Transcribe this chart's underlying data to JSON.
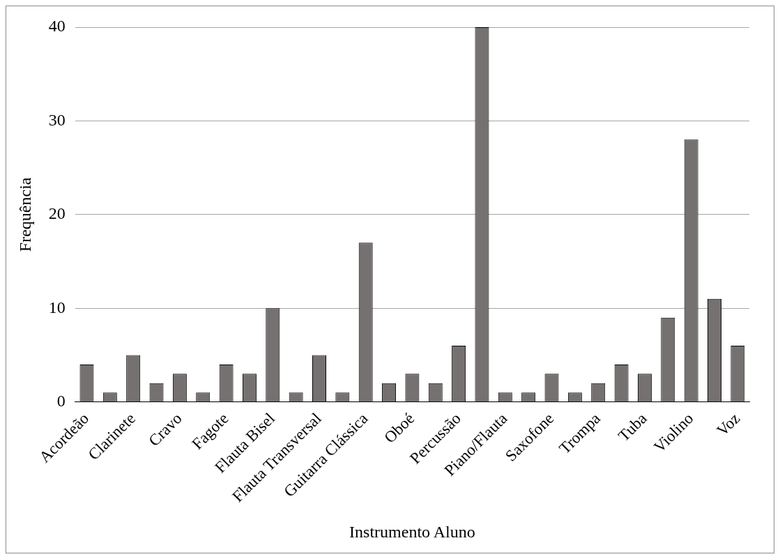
{
  "chart_data": {
    "type": "bar",
    "xlabel": "Instrumento Aluno",
    "ylabel": "Frequência",
    "categories": [
      "Acordeão",
      null,
      "Clarinete",
      null,
      "Cravo",
      null,
      "Fagote",
      null,
      "Flauta Bisel",
      null,
      "Flauta Transversal",
      null,
      "Guitarra Clássica",
      null,
      "Oboé",
      null,
      "Percussão",
      null,
      "Piano/Flauta",
      null,
      "Saxofone",
      null,
      "Trompa",
      null,
      "Tuba",
      null,
      "Violino",
      null,
      "Voz"
    ],
    "values": [
      4,
      1,
      5,
      2,
      3,
      1,
      4,
      3,
      10,
      1,
      5,
      1,
      17,
      2,
      3,
      2,
      6,
      40,
      1,
      1,
      3,
      1,
      2,
      4,
      3,
      9,
      28,
      11,
      6
    ],
    "color": "#767171",
    "ylim": [
      0,
      40
    ],
    "yticks": [
      0,
      10,
      20,
      30,
      40
    ],
    "grid": "y",
    "legend": false
  }
}
